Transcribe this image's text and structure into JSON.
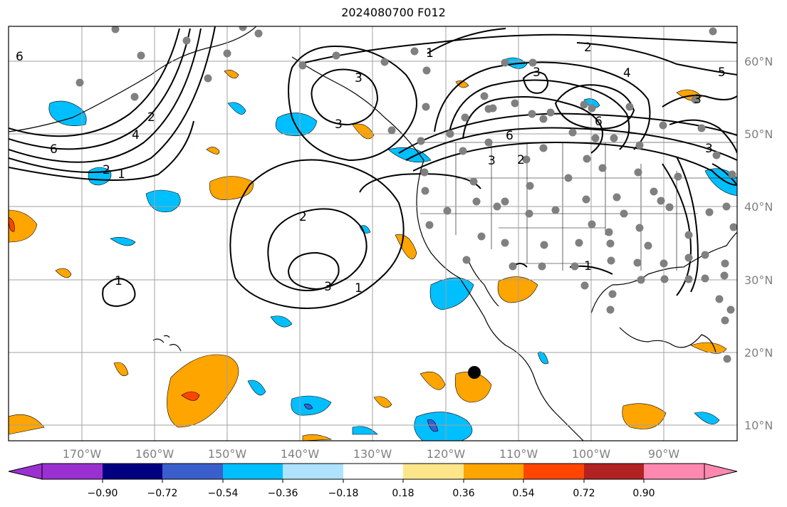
{
  "title": "2024080700 F012",
  "map": {
    "lon_labels": [
      "170°W",
      "160°W",
      "150°W",
      "140°W",
      "130°W",
      "120°W",
      "110°W",
      "100°W",
      "90°W"
    ],
    "lat_labels": [
      "60°N",
      "50°N",
      "40°N",
      "30°N",
      "20°N",
      "10°N"
    ],
    "contour_labels": [
      "1",
      "1",
      "1",
      "1",
      "1",
      "2",
      "2",
      "2",
      "2",
      "3",
      "3",
      "3",
      "3",
      "3",
      "3",
      "4",
      "4",
      "5",
      "6",
      "6",
      "6",
      "6",
      "2",
      "3"
    ],
    "tick_color": "#808080",
    "grid_color": "#a0a0a0",
    "marker_color": "#000000",
    "station_dot_color": "#808080"
  },
  "colorbar": {
    "ticks": [
      "−0.90",
      "−0.72",
      "−0.54",
      "−0.36",
      "−0.18",
      "0.18",
      "0.36",
      "0.54",
      "0.72",
      "0.90"
    ],
    "colors": [
      "#9b30d0",
      "#000080",
      "#3a5fcd",
      "#00bfff",
      "#aee2ff",
      "#ffffff",
      "#fde68a",
      "#ffa500",
      "#ff4500",
      "#b22222",
      "#ff88b0",
      "#ff88b0"
    ]
  }
}
